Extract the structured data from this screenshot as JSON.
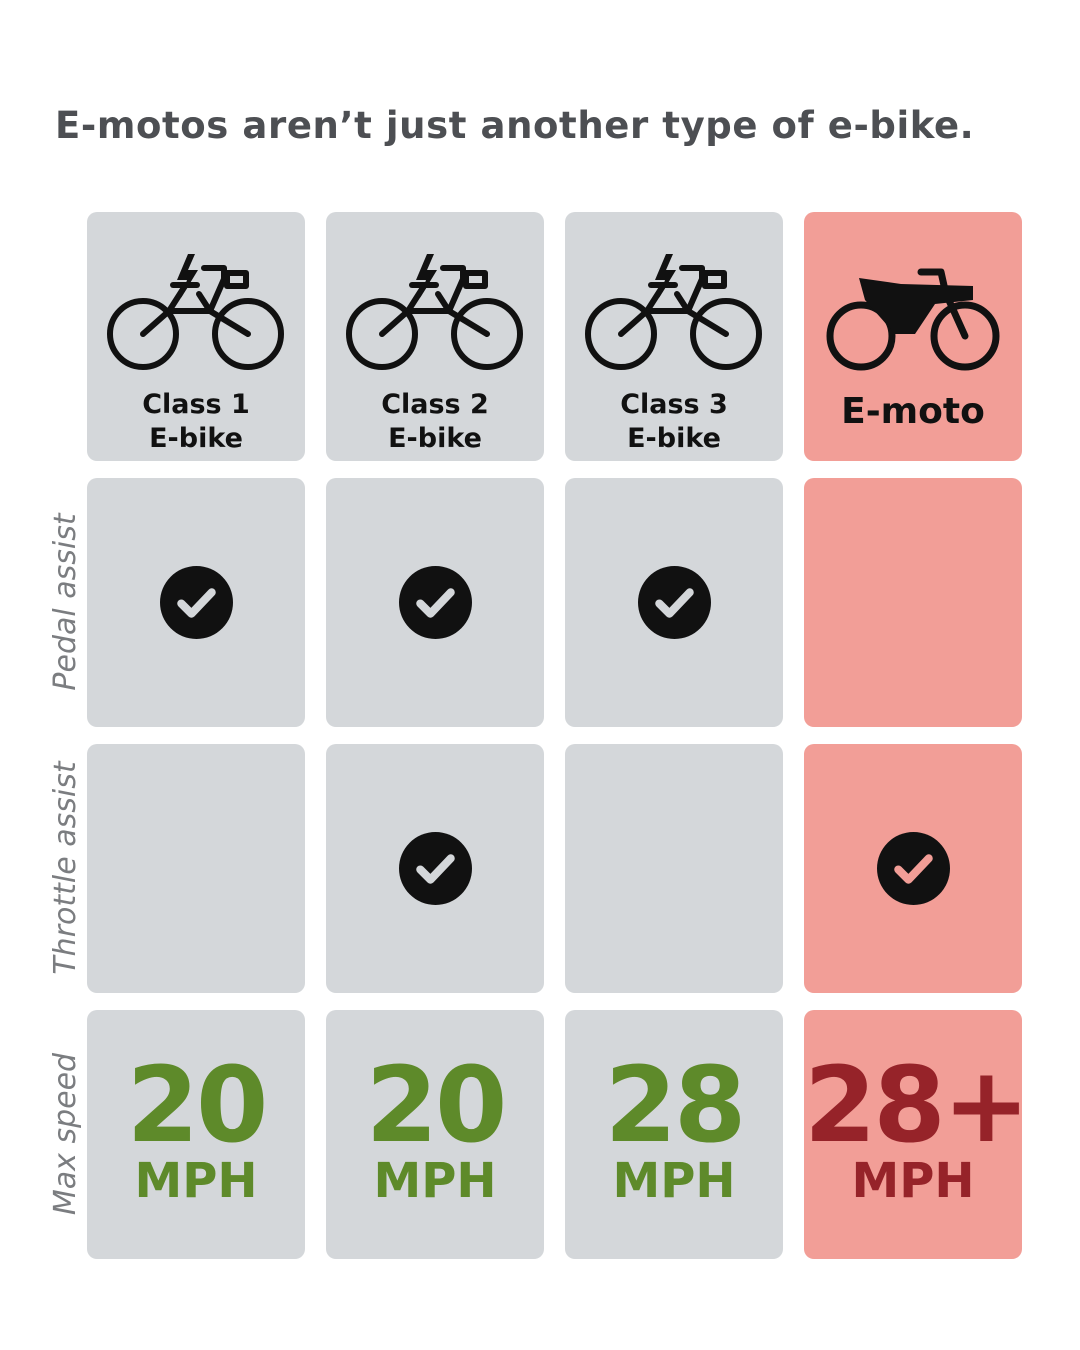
{
  "title": "E-motos aren’t just another type of e-bike.",
  "row_labels": {
    "pedal": "Pedal assist",
    "throttle": "Throttle assist",
    "speed": "Max speed"
  },
  "columns": [
    {
      "line1": "Class 1",
      "line2": "E-bike",
      "icon": "electric-bike-icon",
      "pedal_assist": true,
      "throttle_assist": false,
      "max_speed": "20",
      "unit": "MPH"
    },
    {
      "line1": "Class 2",
      "line2": "E-bike",
      "icon": "electric-bike-icon",
      "pedal_assist": true,
      "throttle_assist": true,
      "max_speed": "20",
      "unit": "MPH"
    },
    {
      "line1": "Class 3",
      "line2": "E-bike",
      "icon": "electric-bike-icon",
      "pedal_assist": true,
      "throttle_assist": false,
      "max_speed": "28",
      "unit": "MPH"
    },
    {
      "line1": "E-moto",
      "line2": "",
      "icon": "motorbike-icon",
      "pedal_assist": false,
      "throttle_assist": true,
      "max_speed": "28+",
      "unit": "MPH"
    }
  ],
  "colors": {
    "ebike_cell": "#d4d7da",
    "emoto_cell": "#f29e97",
    "ebike_speed": "#5e8a2a",
    "emoto_speed": "#962329"
  }
}
